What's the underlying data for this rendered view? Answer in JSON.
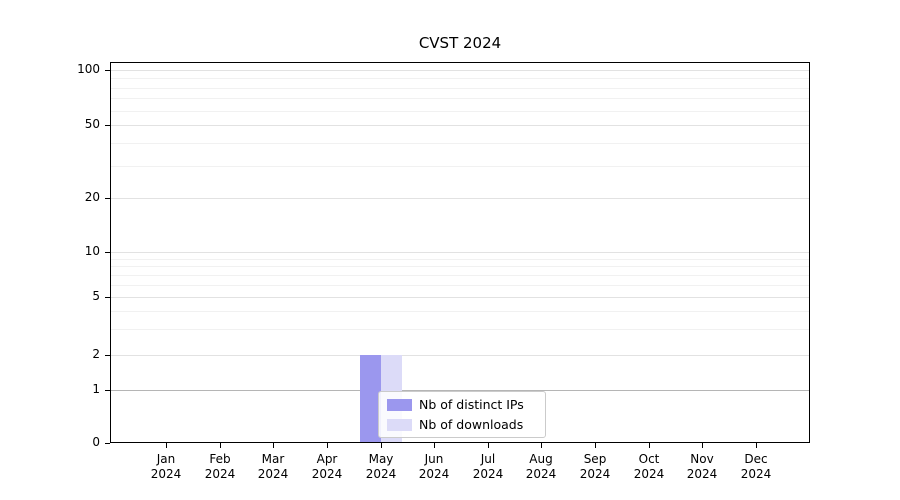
{
  "chart_data": {
    "type": "bar",
    "title": "CVST 2024",
    "categories": [
      {
        "month": "Jan",
        "year": "2024"
      },
      {
        "month": "Feb",
        "year": "2024"
      },
      {
        "month": "Mar",
        "year": "2024"
      },
      {
        "month": "Apr",
        "year": "2024"
      },
      {
        "month": "May",
        "year": "2024"
      },
      {
        "month": "Jun",
        "year": "2024"
      },
      {
        "month": "Jul",
        "year": "2024"
      },
      {
        "month": "Aug",
        "year": "2024"
      },
      {
        "month": "Sep",
        "year": "2024"
      },
      {
        "month": "Oct",
        "year": "2024"
      },
      {
        "month": "Nov",
        "year": "2024"
      },
      {
        "month": "Dec",
        "year": "2024"
      }
    ],
    "series": [
      {
        "name": "Nb of distinct IPs",
        "color": "#9b97ee",
        "values": [
          0,
          0,
          0,
          0,
          2,
          0,
          0,
          0,
          0,
          0,
          0,
          0
        ]
      },
      {
        "name": "Nb of downloads",
        "color": "#dcdbf8",
        "values": [
          0,
          0,
          0,
          0,
          2,
          0,
          0,
          0,
          0,
          0,
          0,
          0
        ]
      }
    ],
    "yscale": "symlog",
    "yticks": [
      0,
      1,
      2,
      5,
      10,
      20,
      50,
      100
    ],
    "minor_gridlines": [
      3,
      4,
      6,
      7,
      8,
      9,
      30,
      40,
      60,
      70,
      80,
      90
    ],
    "ylim": [
      0,
      110
    ],
    "grid": true,
    "legend": {
      "position": "lower-center",
      "entries": [
        "Nb of distinct IPs",
        "Nb of downloads"
      ]
    }
  },
  "colors": {
    "bar_dark": "#9b97ee",
    "bar_light": "#dcdbf8",
    "grid_major": "#e2e2e2",
    "grid_minor": "#f1f1f1",
    "grid_unit_line": "#b5b5b5",
    "axis": "#000000",
    "legend_border": "#cbcbcb"
  }
}
